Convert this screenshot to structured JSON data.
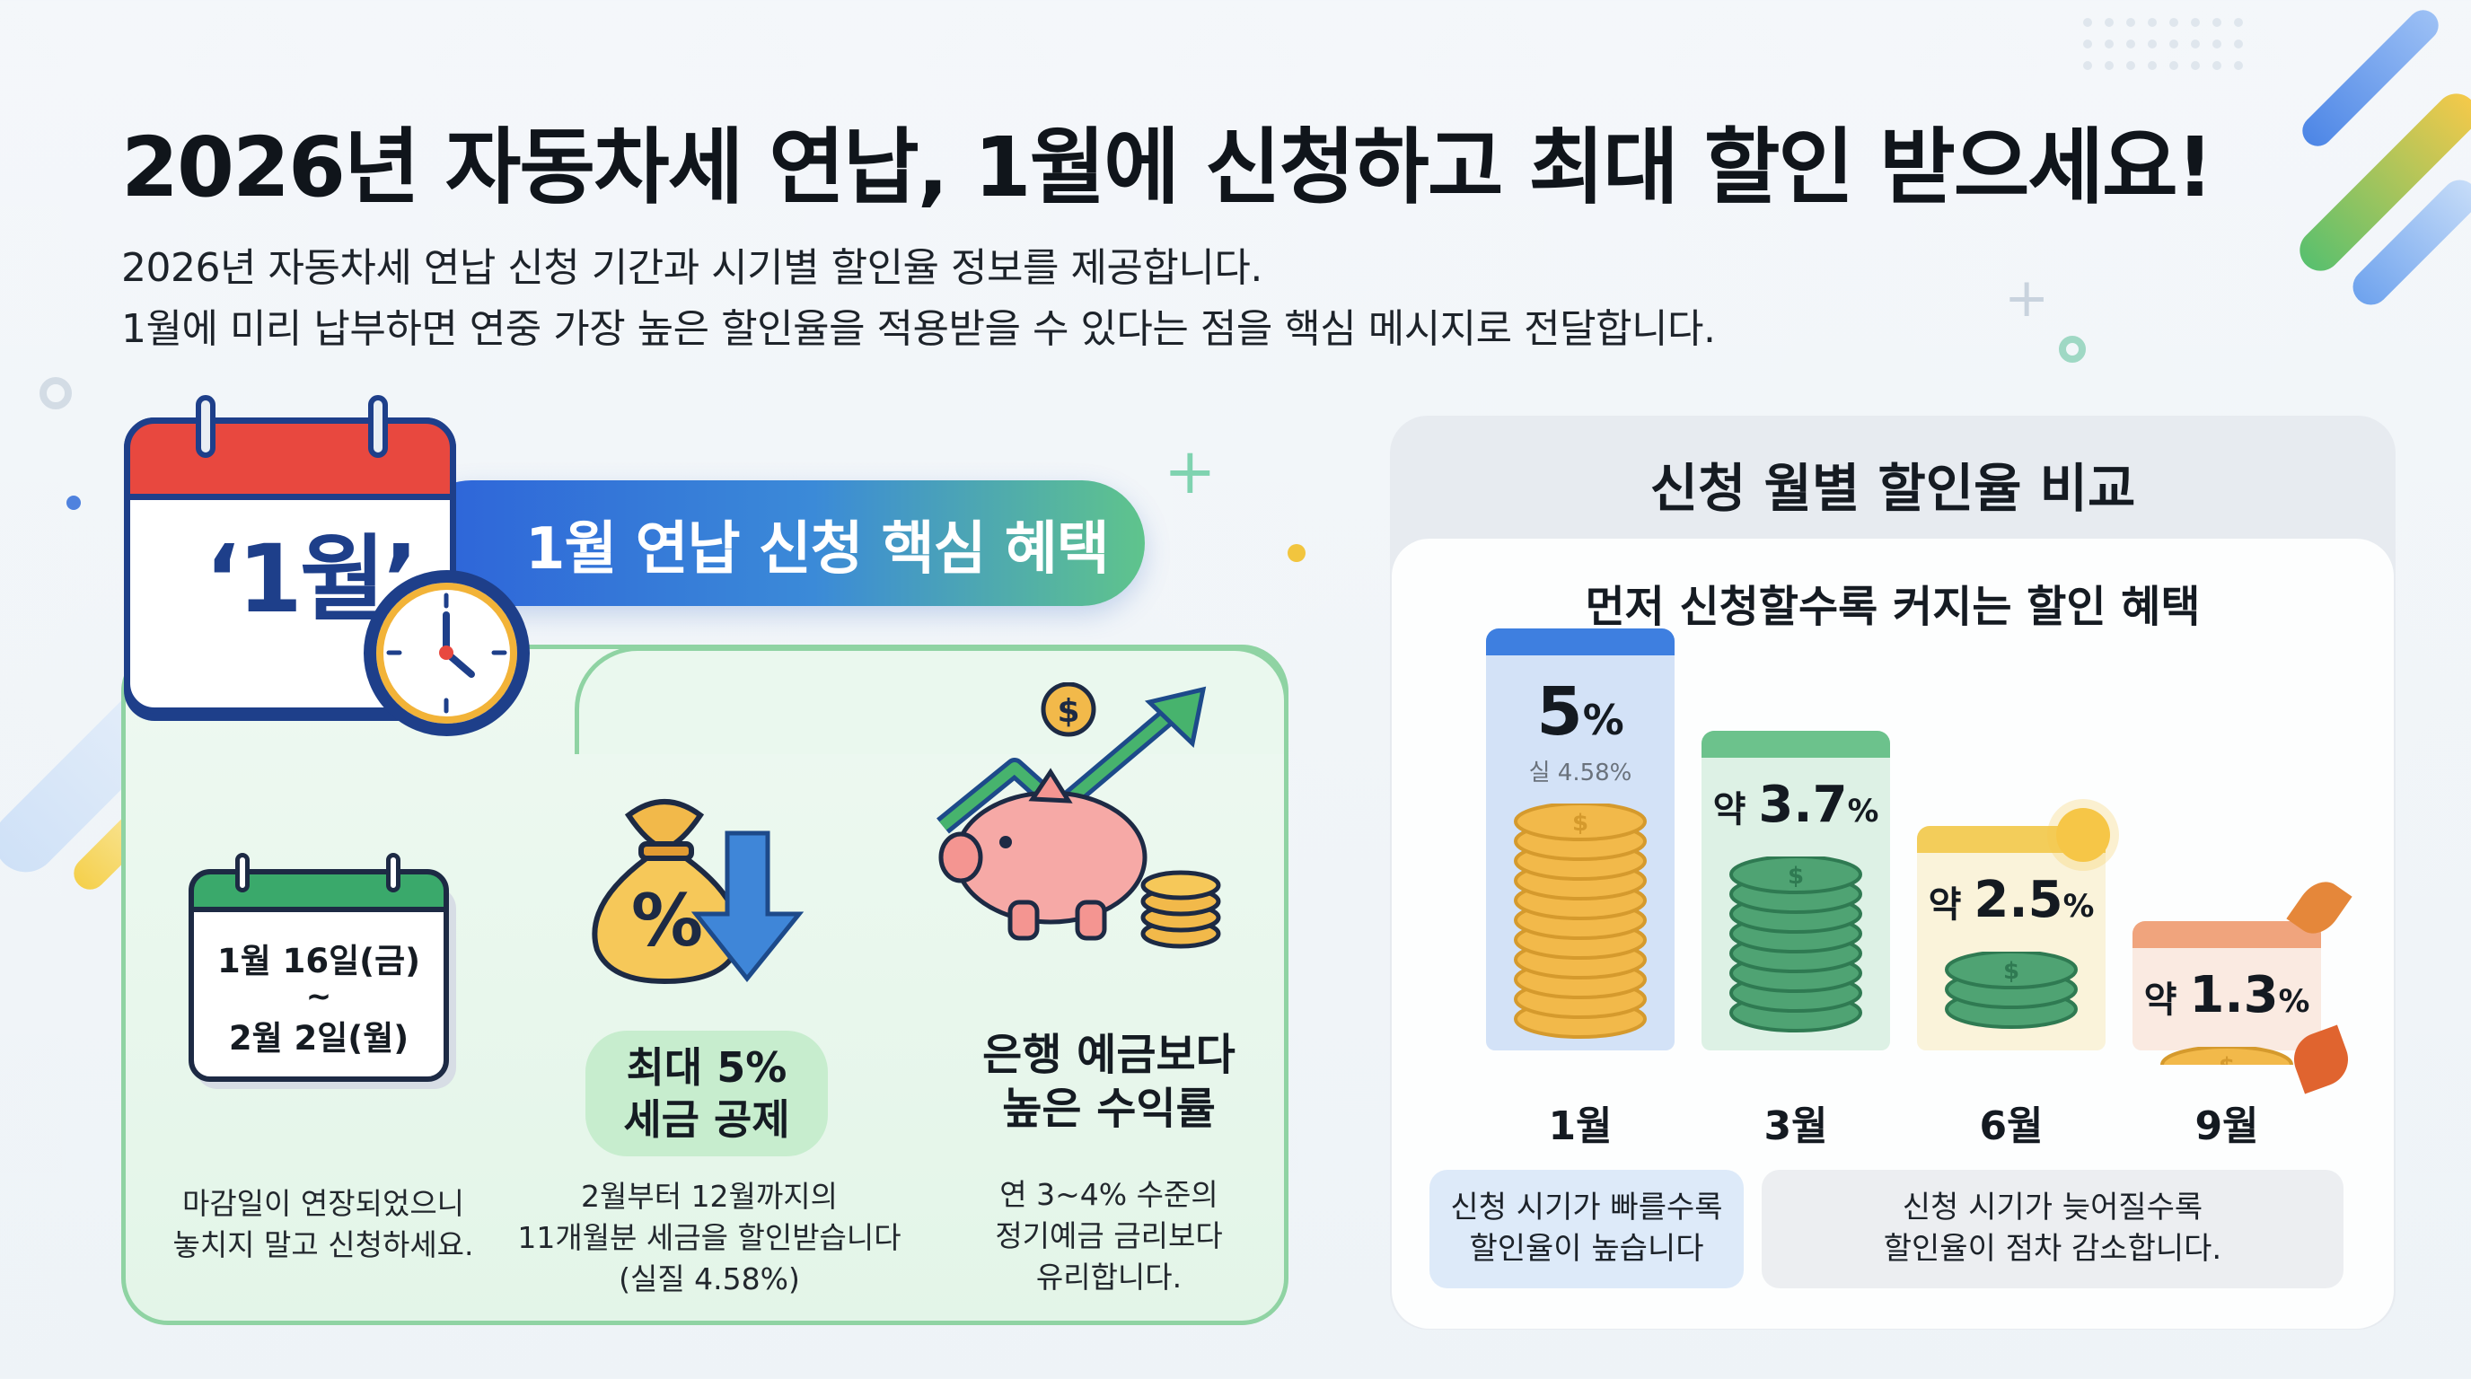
{
  "header": {
    "title": "2026년 자동차세 연납, 1월에 신청하고 최대 할인 받으세요!",
    "subtitle_line1": "2026년 자동차세 연납 신청 기간과 시기별 할인율 정보를 제공합니다.",
    "subtitle_line2": "1월에 미리 납부하면 연중 가장 높은 할인율을 적용받을 수 있다는 점을 핵심 메시지로 전달합니다."
  },
  "left": {
    "calendar_label": "‘1월’",
    "banner": "1월 연납 신청 핵심 혜택",
    "deadline": {
      "date_start": "1월 16일(금)",
      "tilde": "~",
      "date_end": "2월 2일(월)",
      "desc_line1": "마감일이 연장되었으니",
      "desc_line2": "놓치지 말고 신청하세요."
    },
    "tax": {
      "percent_symbol": "%",
      "title_line1": "최대 5%",
      "title_line2": "세금 공제",
      "desc_line1": "2월부터 12월까지의",
      "desc_line2": "11개월분 세금을 할인받습니다",
      "desc_line3": "(실질 4.58%)"
    },
    "savings": {
      "dollar_symbol": "$",
      "title_line1": "은행 예금보다",
      "title_line2": "높은 수익률",
      "desc_line1": "연 3~4% 수준의",
      "desc_line2": "정기예금 금리보다",
      "desc_line3": "유리합니다."
    }
  },
  "right": {
    "title": "신청 월별 할인율 비교",
    "subtitle": "먼저 신청할수록 커지는 할인 혜택",
    "coin_symbol": "$",
    "bars": [
      {
        "month": "1월",
        "prefix": "",
        "value": "5",
        "unit": "%",
        "note": "실 4.58%",
        "rate": 5.0,
        "color": "#3e7fe0"
      },
      {
        "month": "3월",
        "prefix": "약",
        "value": "3.7",
        "unit": "%",
        "note": "",
        "rate": 3.7,
        "color": "#6cc28c"
      },
      {
        "month": "6월",
        "prefix": "약",
        "value": "2.5",
        "unit": "%",
        "note": "",
        "rate": 2.5,
        "color": "#f3cd5a"
      },
      {
        "month": "9월",
        "prefix": "약",
        "value": "1.3",
        "unit": "%",
        "note": "",
        "rate": 1.3,
        "color": "#f0a47d"
      }
    ],
    "note_fast_line1": "신청 시기가 빠를수록",
    "note_fast_line2": "할인율이 높습니다",
    "note_late_line1": "신청 시기가 늦어질수록",
    "note_late_line2": "할인율이 점차 감소합니다."
  }
}
